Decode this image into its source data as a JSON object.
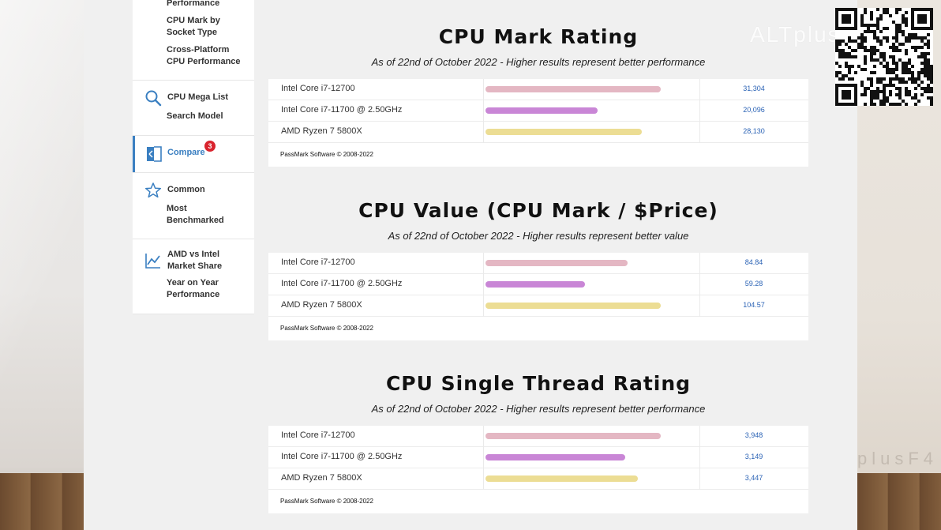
{
  "sidebar": {
    "performance_label": "Performance",
    "socket_label_1": "CPU Mark by",
    "socket_label_2": "Socket Type",
    "cross_label_1": "Cross-Platform",
    "cross_label_2": "CPU Performance",
    "mega_label": "CPU Mega List",
    "search_label": "Search Model",
    "compare_label": "Compare",
    "compare_badge": "3",
    "common_label": "Common",
    "most_label_1": "Most",
    "most_label_2": "Benchmarked",
    "amd_label_1": "AMD vs Intel",
    "amd_label_2": "Market Share",
    "year_label_1": "Year on Year",
    "year_label_2": "Performance",
    "accent_color": "#3a7fc1",
    "badge_color": "#d9232d"
  },
  "charts": [
    {
      "title": "CPU Mark Rating",
      "subtitle": "As of 22nd of October 2022 - Higher results represent better performance",
      "footer": "PassMark Software © 2008-2022",
      "rows": [
        {
          "name": "Intel Core i7-12700",
          "value": "31,304",
          "fill": 0.83,
          "color": "#e4b7c3"
        },
        {
          "name": "Intel Core i7-11700 @ 2.50GHz",
          "value": "20,096",
          "fill": 0.53,
          "color": "#c986d6"
        },
        {
          "name": "AMD Ryzen 7 5800X",
          "value": "28,130",
          "fill": 0.74,
          "color": "#ecdd94"
        }
      ]
    },
    {
      "title": "CPU Value (CPU Mark / $Price)",
      "subtitle": "As of 22nd of October 2022 - Higher results represent better value",
      "footer": "PassMark Software © 2008-2022",
      "rows": [
        {
          "name": "Intel Core i7-12700",
          "value": "84.84",
          "fill": 0.67,
          "color": "#e4b7c3"
        },
        {
          "name": "Intel Core i7-11700 @ 2.50GHz",
          "value": "59.28",
          "fill": 0.47,
          "color": "#c986d6"
        },
        {
          "name": "AMD Ryzen 7 5800X",
          "value": "104.57",
          "fill": 0.83,
          "color": "#ecdd94"
        }
      ]
    },
    {
      "title": "CPU Single Thread Rating",
      "subtitle": "As of 22nd of October 2022 - Higher results represent better performance",
      "footer": "PassMark Software © 2008-2022",
      "rows": [
        {
          "name": "Intel Core i7-12700",
          "value": "3,948",
          "fill": 0.83,
          "color": "#e4b7c3"
        },
        {
          "name": "Intel Core i7-11700 @ 2.50GHz",
          "value": "3,149",
          "fill": 0.66,
          "color": "#c986d6"
        },
        {
          "name": "AMD Ryzen 7 5800X",
          "value": "3,447",
          "fill": 0.72,
          "color": "#ecdd94"
        }
      ]
    }
  ],
  "watermark": "ALTplusF4",
  "watermark_small": "plusF4"
}
